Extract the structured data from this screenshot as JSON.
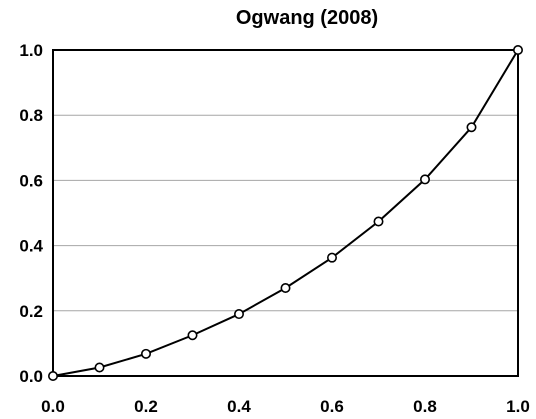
{
  "chart_data": {
    "type": "line",
    "title": "Ogwang (2008)",
    "xlabel": "",
    "ylabel": "",
    "xlim": [
      0,
      1
    ],
    "ylim": [
      0,
      1
    ],
    "grid": true,
    "x_ticks": [
      "0.0",
      "0.2",
      "0.4",
      "0.6",
      "0.8",
      "1.0"
    ],
    "y_ticks": [
      "0.0",
      "0.2",
      "0.4",
      "0.6",
      "0.8",
      "1.0"
    ],
    "series": [
      {
        "x": [
          0.0,
          0.1,
          0.2,
          0.3,
          0.4,
          0.5,
          0.6,
          0.7,
          0.8,
          0.9,
          1.0
        ],
        "y": [
          0.0,
          0.026,
          0.068,
          0.125,
          0.19,
          0.27,
          0.363,
          0.474,
          0.603,
          0.763,
          1.0
        ]
      }
    ]
  }
}
